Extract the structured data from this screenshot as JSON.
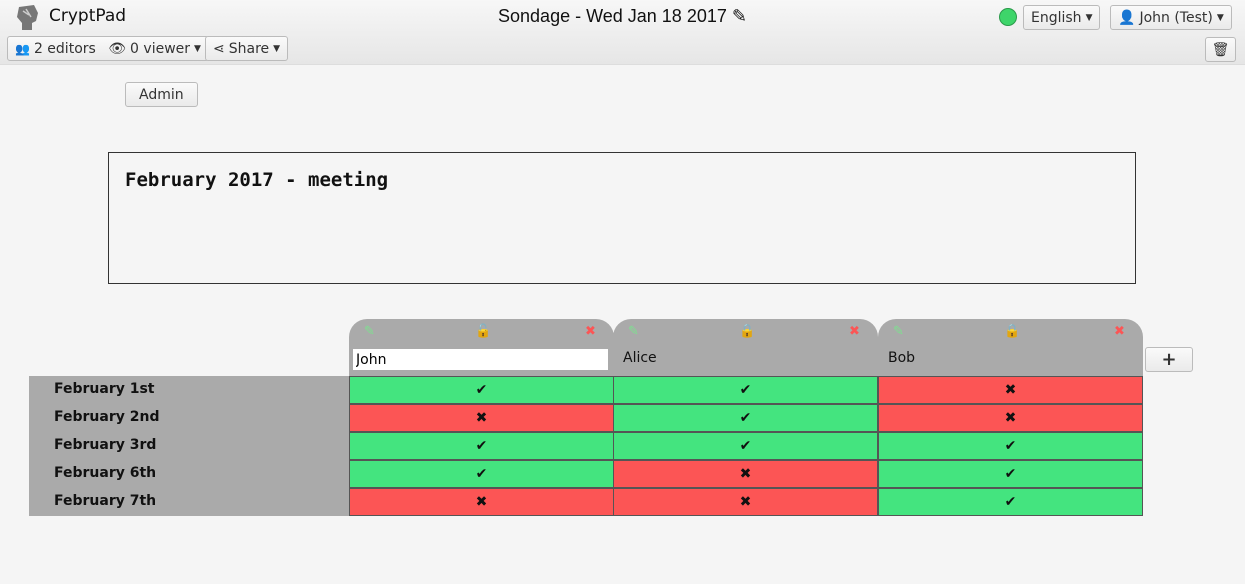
{
  "app": {
    "name": "CryptPad",
    "title": "Sondage - Wed Jan 18 2017",
    "status_color": "#3ed56a"
  },
  "toolbar": {
    "editors": "2 editors",
    "viewers": "0 viewer",
    "share": "Share",
    "language": "English",
    "user": "John (Test)"
  },
  "admin_label": "Admin",
  "description": "February 2017 - meeting",
  "colors": {
    "yes": "#44e47f",
    "no": "#fc5555",
    "header": "#aaaaaa"
  },
  "columns": [
    {
      "name": "John",
      "locked": false,
      "editing": true
    },
    {
      "name": "Alice",
      "locked": true
    },
    {
      "name": "Bob",
      "locked": true
    }
  ],
  "rows": [
    {
      "label": "February 1st",
      "votes": [
        "yes",
        "yes",
        "no"
      ]
    },
    {
      "label": "February 2nd",
      "votes": [
        "no",
        "yes",
        "no"
      ]
    },
    {
      "label": "February 3rd",
      "votes": [
        "yes",
        "yes",
        "yes"
      ]
    },
    {
      "label": "February 6th",
      "votes": [
        "yes",
        "no",
        "yes"
      ]
    },
    {
      "label": "February 7th",
      "votes": [
        "no",
        "no",
        "yes"
      ]
    }
  ],
  "add_column": "+"
}
